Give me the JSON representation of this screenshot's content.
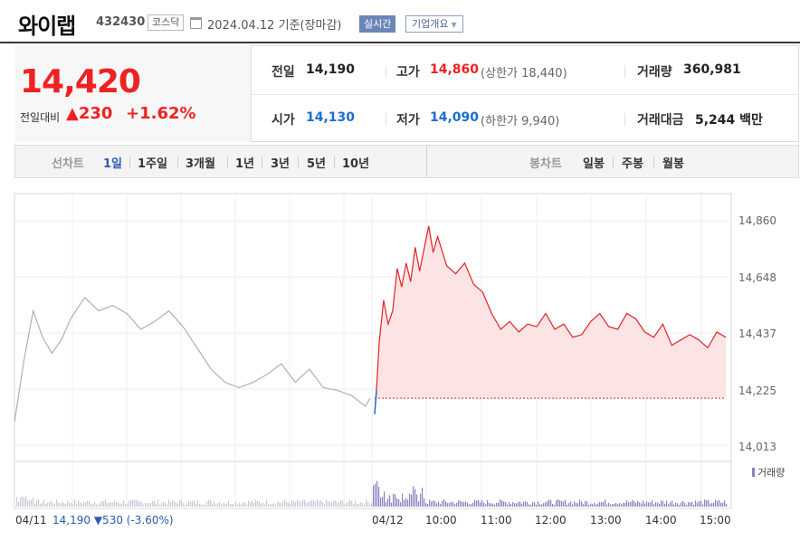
{
  "header": {
    "stock_name": "와이랩",
    "stock_code": "432430",
    "market": "코스닥",
    "date_text": "2024.04.12 기준(장마감)",
    "realtime_button": "실시간",
    "company_button": "기업개요"
  },
  "summary": {
    "price": "14,420",
    "change_label": "전일대비",
    "change_amount": "230",
    "change_percent": "+1.62%",
    "prev_close_label": "전일",
    "prev_close": "14,190",
    "open_label": "시가",
    "open": "14,130",
    "high_label": "고가",
    "high": "14,860",
    "upper_limit_text": "(상한가 18,440)",
    "low_label": "저가",
    "low": "14,090",
    "lower_limit_text": "(하한가 9,940)",
    "volume_label": "거래량",
    "volume": "360,981",
    "amount_label": "거래대금",
    "amount": "5,244 백만"
  },
  "period_bar": {
    "line_chart_label": "선차트",
    "periods": [
      "1일",
      "1주일",
      "3개월",
      "1년",
      "3년",
      "5년",
      "10년"
    ],
    "selected_period": "1일",
    "candle_chart_label": "봉차트",
    "candle_periods": [
      "일봉",
      "주봉",
      "월봉"
    ]
  },
  "colors": {
    "up": "#e22222",
    "down": "#1a6dd4",
    "prev_line": "#b0b0b0",
    "fill": "#fde4e4",
    "volume": "#8c7fc0"
  },
  "chart_data": {
    "type": "line",
    "y_ticks": [
      "14,860",
      "14,648",
      "14,437",
      "14,225",
      "14,013"
    ],
    "ylim": [
      14013,
      14860
    ],
    "x_tick_labels": [
      "04/11",
      "04/12",
      "10:00",
      "11:00",
      "12:00",
      "13:00",
      "14:00",
      "15:00"
    ],
    "baseline_prev_close": 14190,
    "series": [
      {
        "date": "04/11",
        "x": [
          "09:00",
          "09:10",
          "09:20",
          "09:30",
          "09:40",
          "09:50",
          "10:00",
          "10:15",
          "10:30",
          "10:45",
          "11:00",
          "11:15",
          "11:30",
          "11:45",
          "12:00",
          "12:15",
          "12:30",
          "12:45",
          "13:00",
          "13:15",
          "13:30",
          "13:45",
          "14:00",
          "14:15",
          "14:30",
          "14:45",
          "15:00",
          "15:15",
          "15:20"
        ],
        "values": [
          14100,
          14330,
          14520,
          14420,
          14360,
          14410,
          14490,
          14570,
          14520,
          14540,
          14510,
          14450,
          14480,
          14520,
          14460,
          14380,
          14300,
          14250,
          14230,
          14250,
          14280,
          14320,
          14250,
          14300,
          14230,
          14220,
          14200,
          14160,
          14190
        ]
      },
      {
        "date": "04/12",
        "x": [
          "09:00",
          "09:02",
          "09:05",
          "09:10",
          "09:15",
          "09:20",
          "09:25",
          "09:30",
          "09:35",
          "09:40",
          "09:45",
          "09:50",
          "10:00",
          "10:05",
          "10:10",
          "10:20",
          "10:30",
          "10:40",
          "10:50",
          "11:00",
          "11:10",
          "11:20",
          "11:30",
          "11:40",
          "11:50",
          "12:00",
          "12:10",
          "12:20",
          "12:30",
          "12:40",
          "12:50",
          "13:00",
          "13:10",
          "13:20",
          "13:30",
          "13:40",
          "13:50",
          "14:00",
          "14:10",
          "14:20",
          "14:30",
          "14:40",
          "14:50",
          "15:00",
          "15:10",
          "15:20",
          "15:30"
        ],
        "values": [
          14130,
          14220,
          14400,
          14560,
          14470,
          14520,
          14680,
          14610,
          14700,
          14630,
          14760,
          14670,
          14840,
          14740,
          14800,
          14690,
          14660,
          14700,
          14620,
          14590,
          14510,
          14450,
          14480,
          14440,
          14470,
          14460,
          14510,
          14450,
          14470,
          14420,
          14430,
          14480,
          14510,
          14460,
          14450,
          14510,
          14490,
          14440,
          14420,
          14470,
          14390,
          14410,
          14430,
          14410,
          14380,
          14440,
          14420
        ]
      }
    ],
    "volume_legend": "거래량",
    "footer_prev_day": "04/11",
    "footer_prev_close": "14,190",
    "footer_prev_change": "▼530",
    "footer_prev_pct": "(-3.60%)"
  }
}
